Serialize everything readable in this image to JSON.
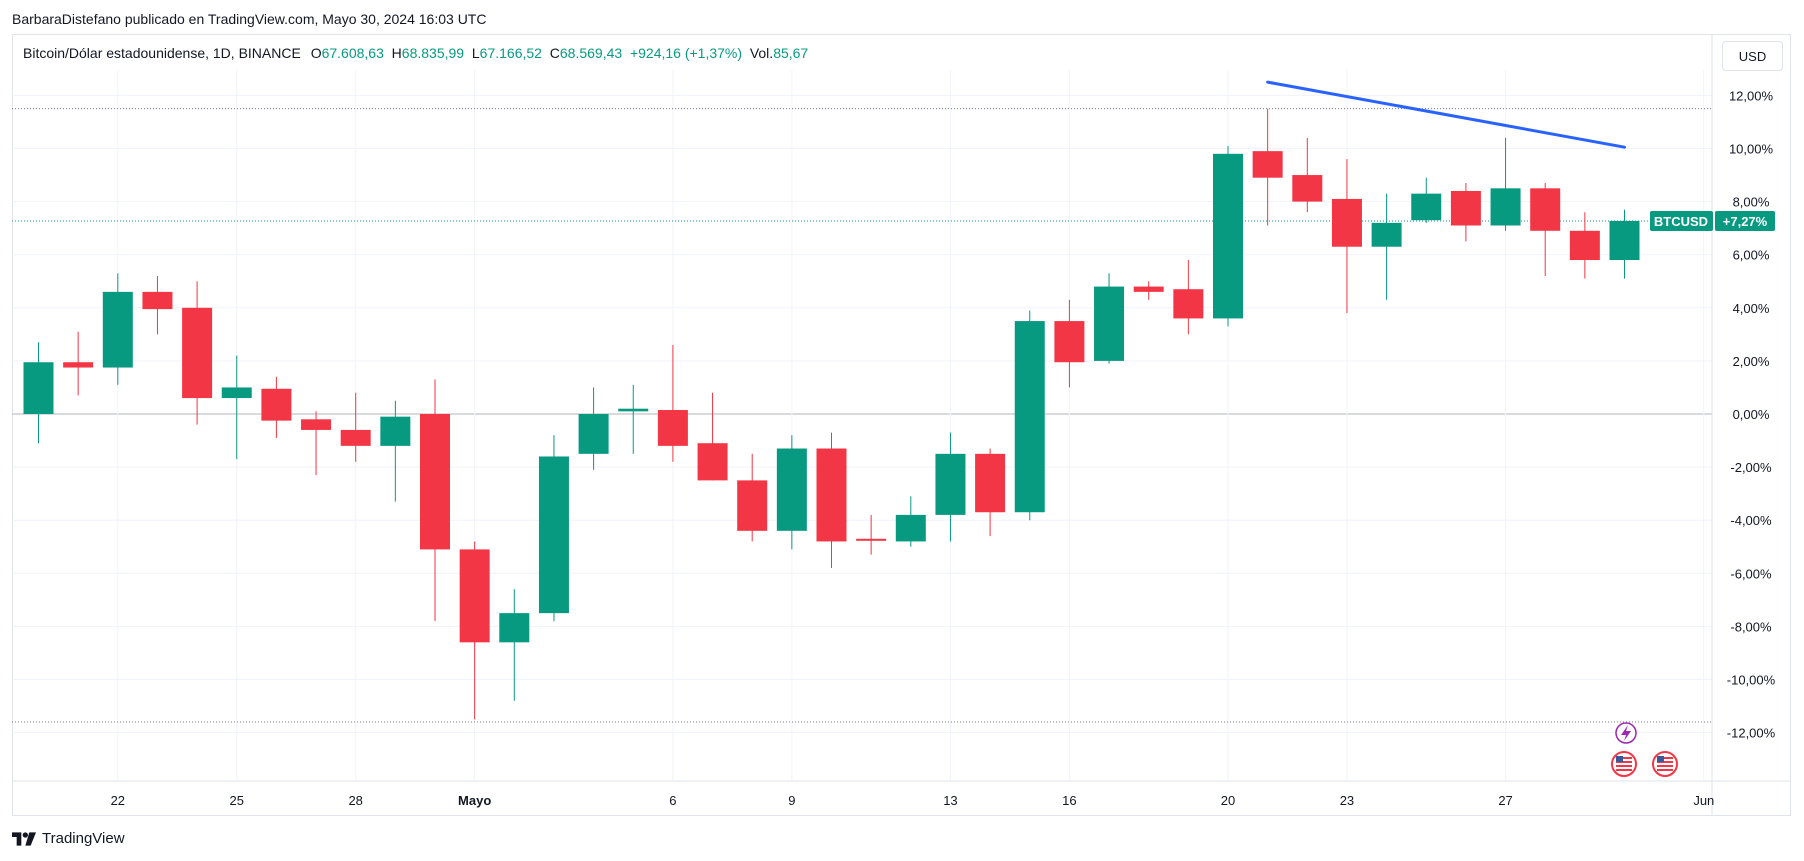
{
  "caption": "BarbaraDistefano publicado en TradingView.com, Mayo 30, 2024 16:03 UTC",
  "legend": {
    "symbol": "Bitcoin/Dólar estadounidense, 1D, BINANCE",
    "o_label": "O",
    "o_value": "67.608,63",
    "h_label": "H",
    "h_value": "68.835,99",
    "l_label": "L",
    "l_value": "67.166,52",
    "c_label": "C",
    "c_value": "68.569,43",
    "change": "+924,16 (+1,37%)",
    "vol_label": "Vol.",
    "vol_value": "85,67"
  },
  "currency_button": "USD",
  "footer_brand": "TradingView",
  "price_tag": {
    "symbol": "BTCUSD",
    "value": "+7,27%"
  },
  "colors": {
    "up": "#089981",
    "down": "#f23645",
    "trendline": "#2962ff",
    "grid": "#f0f3fa",
    "zero": "#b2b5be"
  },
  "chart_data": {
    "type": "candlestick",
    "y_unit": "%",
    "ylim": [
      -14,
      14
    ],
    "y_ticks": [
      "12,00%",
      "10,00%",
      "8,00%",
      "6,00%",
      "4,00%",
      "2,00%",
      "0,00%",
      "-2,00%",
      "-4,00%",
      "-6,00%",
      "-8,00%",
      "-10,00%",
      "-12,00%"
    ],
    "x_ticks": [
      {
        "i": 2,
        "label": "22"
      },
      {
        "i": 5,
        "label": "25"
      },
      {
        "i": 8,
        "label": "28"
      },
      {
        "i": 11,
        "label": "Mayo"
      },
      {
        "i": 16,
        "label": "6"
      },
      {
        "i": 19,
        "label": "9"
      },
      {
        "i": 23,
        "label": "13"
      },
      {
        "i": 26,
        "label": "16"
      },
      {
        "i": 30,
        "label": "20"
      },
      {
        "i": 33,
        "label": "23"
      },
      {
        "i": 37,
        "label": "27"
      },
      {
        "i": 42,
        "label": "Jun"
      }
    ],
    "candles": [
      {
        "o": 0.0,
        "h": 2.7,
        "l": -1.1,
        "c": 1.95
      },
      {
        "o": 1.95,
        "h": 3.1,
        "l": 0.7,
        "c": 1.75
      },
      {
        "o": 1.75,
        "h": 5.3,
        "l": 1.1,
        "c": 4.6
      },
      {
        "o": 4.6,
        "h": 5.2,
        "l": 3.0,
        "c": 3.95
      },
      {
        "o": 4.0,
        "h": 5.0,
        "l": -0.4,
        "c": 0.6
      },
      {
        "o": 0.6,
        "h": 2.2,
        "l": -1.7,
        "c": 1.0
      },
      {
        "o": 0.95,
        "h": 1.4,
        "l": -0.9,
        "c": -0.25
      },
      {
        "o": -0.2,
        "h": 0.1,
        "l": -2.3,
        "c": -0.6
      },
      {
        "o": -0.6,
        "h": 0.8,
        "l": -1.8,
        "c": -1.2
      },
      {
        "o": -1.2,
        "h": 0.5,
        "l": -3.3,
        "c": -0.1
      },
      {
        "o": 0.0,
        "h": 1.3,
        "l": -7.8,
        "c": -5.1
      },
      {
        "o": -5.1,
        "h": -4.8,
        "l": -11.5,
        "c": -8.6
      },
      {
        "o": -8.6,
        "h": -6.6,
        "l": -10.8,
        "c": -7.5
      },
      {
        "o": -7.5,
        "h": -0.8,
        "l": -7.8,
        "c": -1.6
      },
      {
        "o": -1.5,
        "h": 1.0,
        "l": -2.1,
        "c": 0.0
      },
      {
        "o": 0.1,
        "h": 1.1,
        "l": -1.5,
        "c": 0.2
      },
      {
        "o": 0.15,
        "h": 2.6,
        "l": -1.8,
        "c": -1.2
      },
      {
        "o": -1.1,
        "h": 0.8,
        "l": -2.5,
        "c": -2.5
      },
      {
        "o": -2.5,
        "h": -1.5,
        "l": -4.8,
        "c": -4.4
      },
      {
        "o": -4.4,
        "h": -0.8,
        "l": -5.1,
        "c": -1.3
      },
      {
        "o": -1.3,
        "h": -0.7,
        "l": -5.8,
        "c": -4.8
      },
      {
        "o": -4.7,
        "h": -3.8,
        "l": -5.3,
        "c": -4.75
      },
      {
        "o": -4.8,
        "h": -3.1,
        "l": -5.0,
        "c": -3.8
      },
      {
        "o": -3.8,
        "h": -0.7,
        "l": -4.8,
        "c": -1.5
      },
      {
        "o": -1.5,
        "h": -1.3,
        "l": -4.6,
        "c": -3.7
      },
      {
        "o": -3.7,
        "h": 3.9,
        "l": -4.0,
        "c": 3.5
      },
      {
        "o": 3.5,
        "h": 4.3,
        "l": 1.0,
        "c": 1.95
      },
      {
        "o": 2.0,
        "h": 5.3,
        "l": 1.9,
        "c": 4.8
      },
      {
        "o": 4.8,
        "h": 5.0,
        "l": 4.3,
        "c": 4.6
      },
      {
        "o": 4.7,
        "h": 5.8,
        "l": 3.0,
        "c": 3.6
      },
      {
        "o": 3.6,
        "h": 10.1,
        "l": 3.3,
        "c": 9.8
      },
      {
        "o": 9.9,
        "h": 11.5,
        "l": 7.1,
        "c": 8.9
      },
      {
        "o": 9.0,
        "h": 10.4,
        "l": 7.6,
        "c": 8.0
      },
      {
        "o": 8.1,
        "h": 9.6,
        "l": 3.8,
        "c": 6.3
      },
      {
        "o": 6.3,
        "h": 8.3,
        "l": 4.3,
        "c": 7.2
      },
      {
        "o": 7.3,
        "h": 8.9,
        "l": 7.2,
        "c": 8.3
      },
      {
        "o": 8.4,
        "h": 8.7,
        "l": 6.5,
        "c": 7.1
      },
      {
        "o": 7.1,
        "h": 10.4,
        "l": 6.9,
        "c": 8.5
      },
      {
        "o": 8.5,
        "h": 8.7,
        "l": 5.2,
        "c": 6.9
      },
      {
        "o": 6.9,
        "h": 7.6,
        "l": 5.1,
        "c": 5.8
      },
      {
        "o": 5.8,
        "h": 7.7,
        "l": 5.1,
        "c": 7.27
      }
    ],
    "trendline": {
      "from": {
        "i": 31,
        "y": 12.5
      },
      "to": {
        "i": 40,
        "y": 10.05
      }
    },
    "max_level": 11.5,
    "min_level": -11.6
  }
}
